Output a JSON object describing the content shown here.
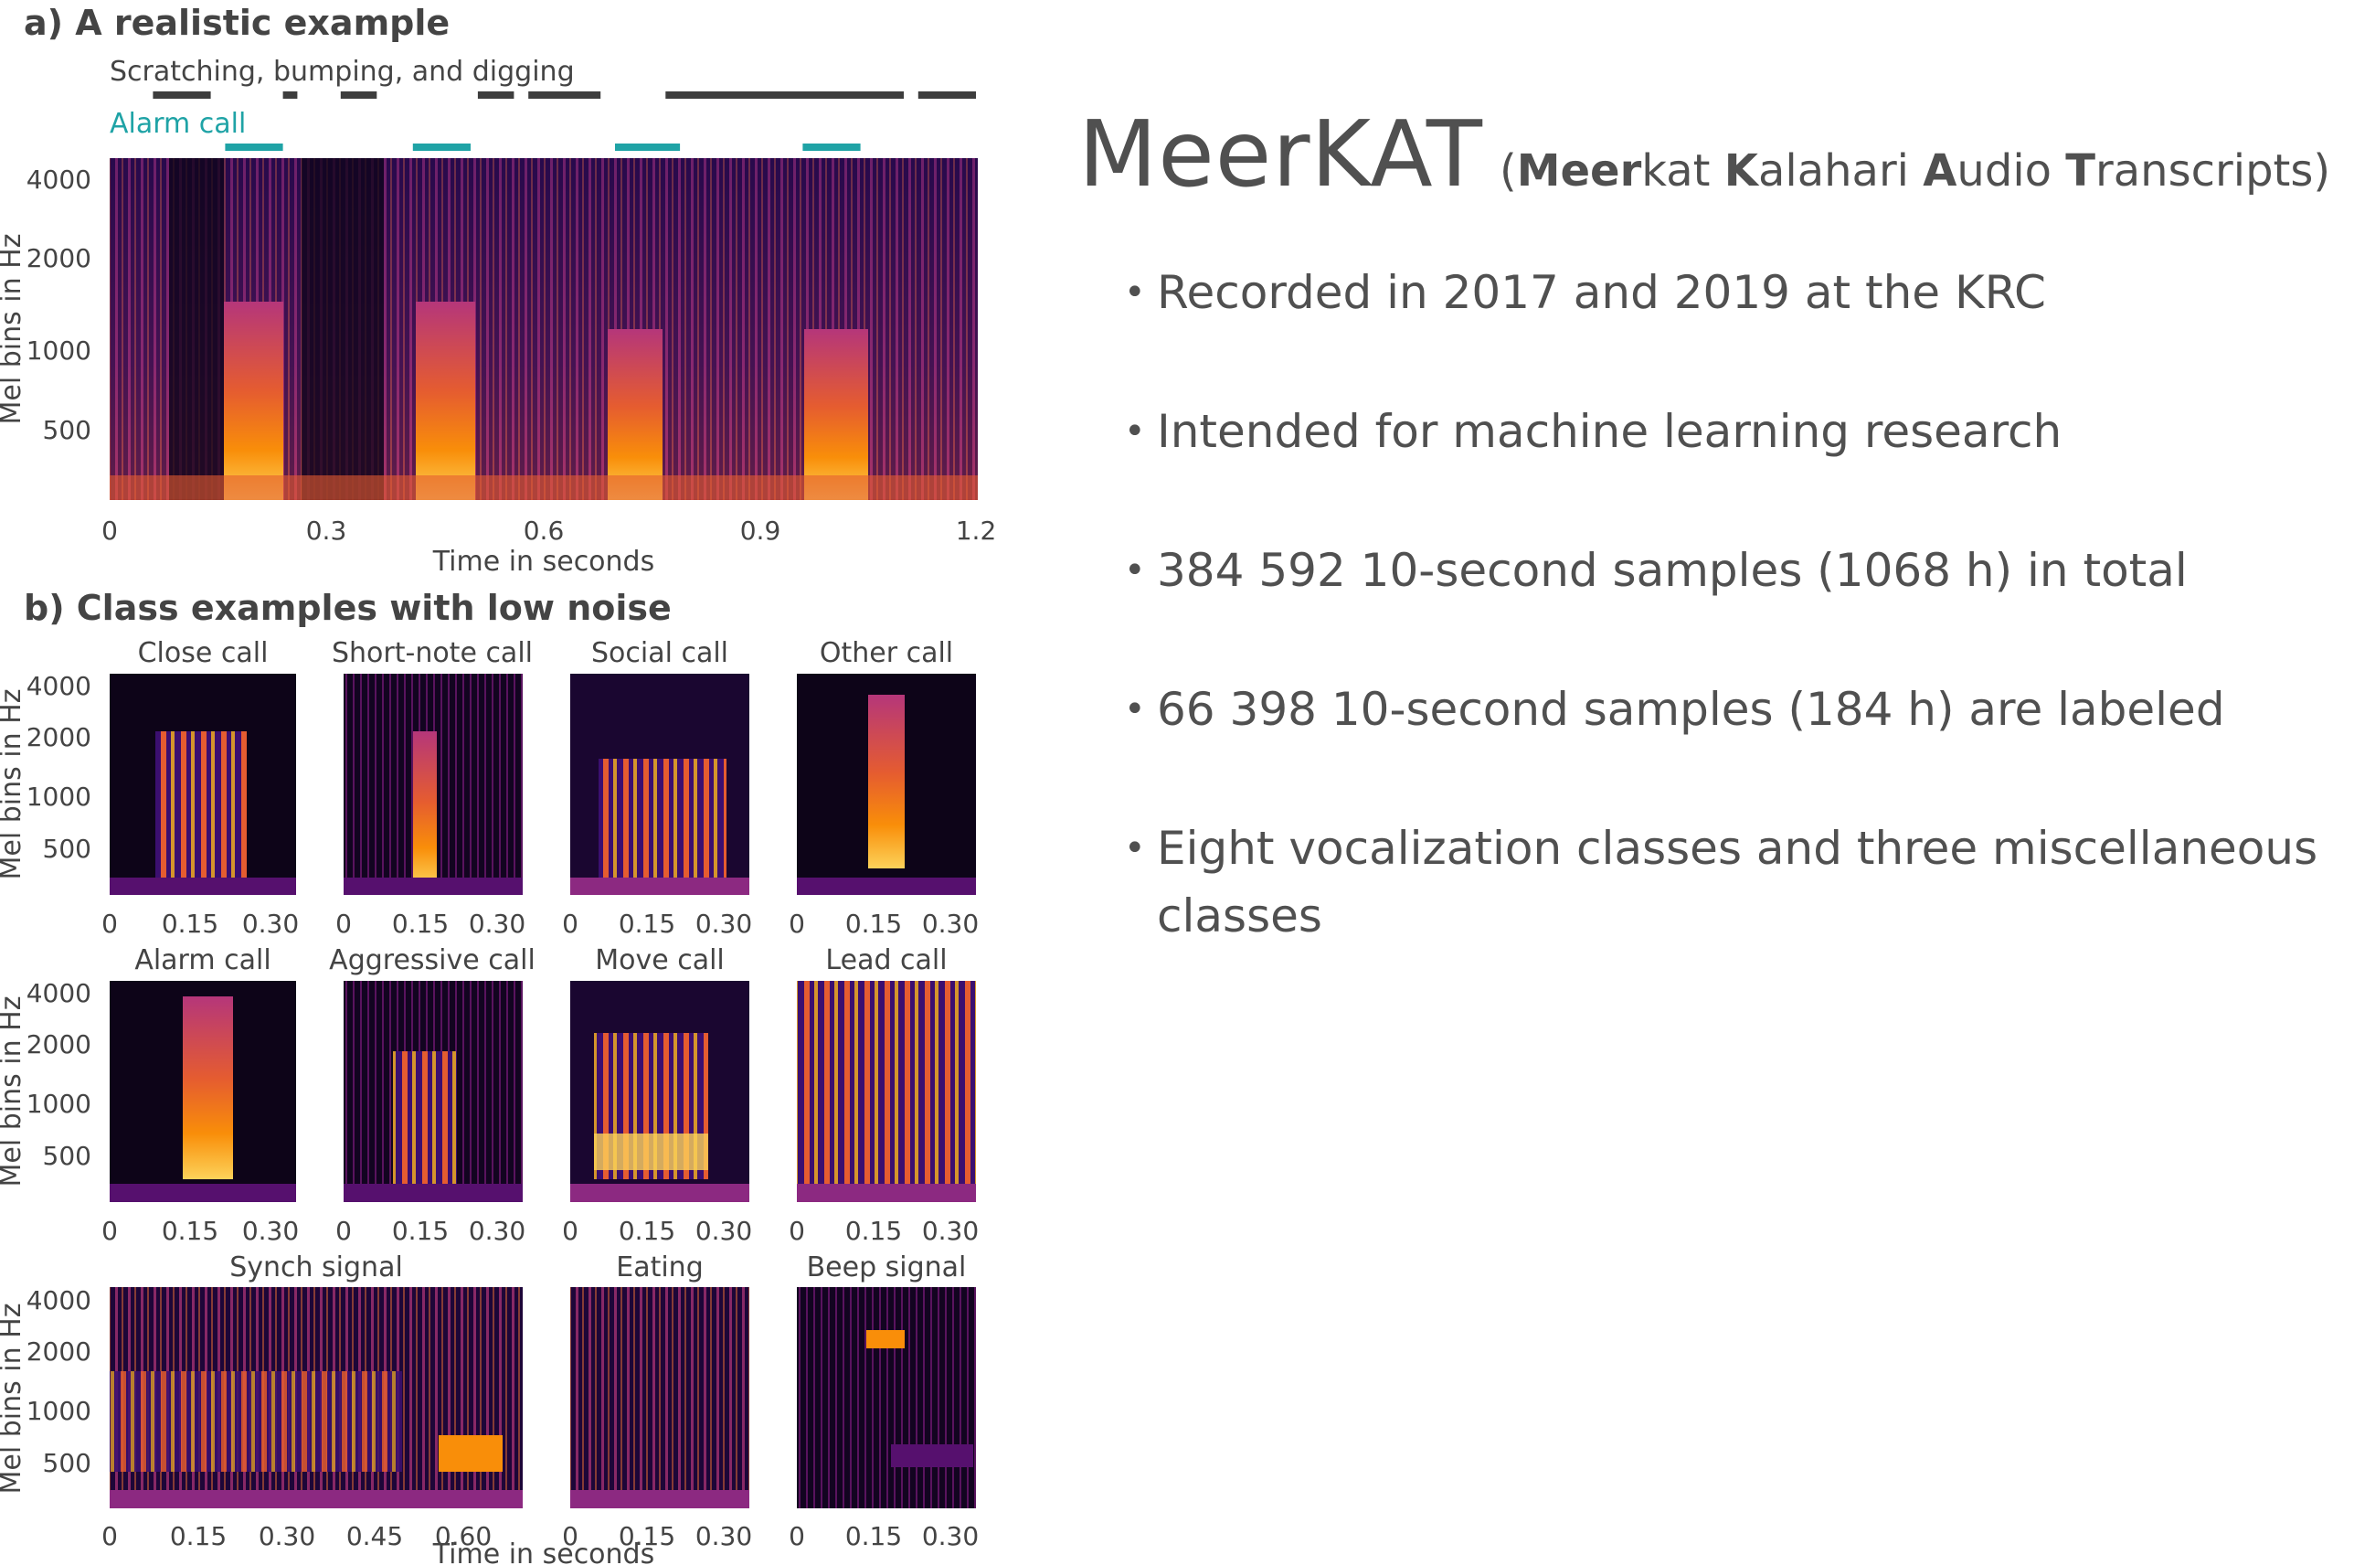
{
  "figure": {
    "panel_a": {
      "title": "a) A realistic example",
      "annotations": [
        {
          "label": "Scratching, bumping, and digging",
          "color": "#3d3d3d",
          "segments": [
            [
              0.06,
              0.14
            ],
            [
              0.24,
              0.26
            ],
            [
              0.32,
              0.37
            ],
            [
              0.51,
              0.56
            ],
            [
              0.58,
              0.68
            ],
            [
              0.77,
              1.1
            ],
            [
              1.12,
              1.2
            ]
          ]
        },
        {
          "label": "Alarm call",
          "color": "#1fa3a6",
          "segments": [
            [
              0.16,
              0.24
            ],
            [
              0.42,
              0.5
            ],
            [
              0.7,
              0.79
            ],
            [
              0.96,
              1.04
            ]
          ]
        }
      ],
      "xlabel": "Time in seconds",
      "ylabel": "Mel bins in Hz",
      "xticks": [
        "0",
        "0.3",
        "0.6",
        "0.9",
        "1.2"
      ],
      "yticks": [
        "4000",
        "2000",
        "1000",
        "500"
      ]
    },
    "panel_b": {
      "title": "b) Class examples with low noise",
      "ylabel": "Mel bins in Hz",
      "xlabel": "Time in seconds",
      "yticks": [
        "4000",
        "2000",
        "1000",
        "500"
      ],
      "xticks_short": [
        "0",
        "0.15",
        "0.30"
      ],
      "xticks_long": [
        "0",
        "0.15",
        "0.30",
        "0.45",
        "0.60"
      ],
      "rows": [
        [
          "Close call",
          "Short-note call",
          "Social call",
          "Other call"
        ],
        [
          "Alarm call",
          "Aggressive call",
          "Move call",
          "Lead call"
        ],
        [
          "Synch signal",
          "Eating",
          "Beep signal"
        ]
      ]
    }
  },
  "side": {
    "title": "MeerKAT",
    "expansion_open": "(",
    "expansion_parts": [
      {
        "bold": "Meer",
        "rest": "kat "
      },
      {
        "bold": "K",
        "rest": "alahari "
      },
      {
        "bold": "A",
        "rest": "udio "
      },
      {
        "bold": "T",
        "rest": "ranscripts)"
      }
    ],
    "bullets": [
      "Recorded in 2017 and 2019 at the KRC",
      "Intended for machine learning research",
      "384 592 10-second samples (1068 h) in total",
      "66 398 10-second samples (184 h) are labeled",
      "Eight vocalization classes and three miscellaneous classes"
    ]
  },
  "colors": {
    "spectrogram_dark": "#0d0418",
    "spectrogram_purple": "#56106e",
    "spectrogram_red": "#bb3754",
    "spectrogram_orange": "#f98e09",
    "spectrogram_yellow": "#fcffa4",
    "alarm_teal": "#1fa3a6",
    "text_gray": "#505050"
  }
}
